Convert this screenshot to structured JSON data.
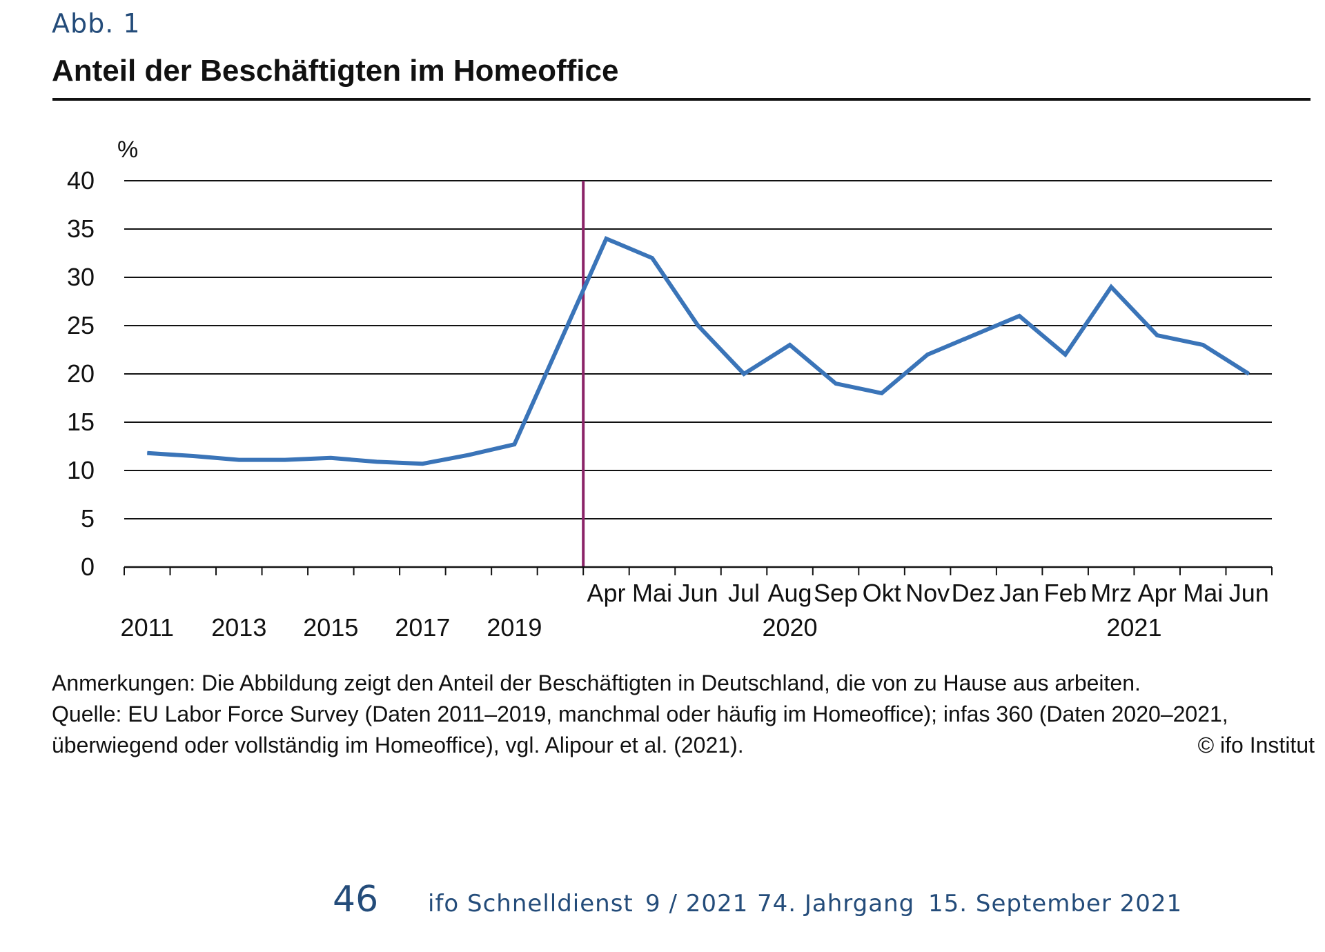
{
  "figure_label": "Abb. 1",
  "chart_data": {
    "type": "line",
    "title": "Anteil der Beschäftigten im Homeoffice",
    "ylabel": "%",
    "ylim": [
      0,
      40
    ],
    "yticks": [
      0,
      5,
      10,
      15,
      20,
      25,
      30,
      35,
      40
    ],
    "grid": true,
    "x_year_labels": [
      "2011",
      "2013",
      "2015",
      "2017",
      "2019"
    ],
    "x_month_labels": [
      "Apr",
      "Mai",
      "Jun",
      "Jul",
      "Aug",
      "Sep",
      "Okt",
      "Nov",
      "Dez",
      "Jan",
      "Feb",
      "Mrz",
      "Apr",
      "Mai",
      "Jun"
    ],
    "x_group_labels": [
      "2020",
      "2021"
    ],
    "series_color": "#3a74b8",
    "marker_line_color": "#8b2468",
    "series": [
      {
        "x_annual": [
          "2011",
          "2012",
          "2013",
          "2014",
          "2015",
          "2016",
          "2017",
          "2018",
          "2019"
        ],
        "values_annual": [
          11.8,
          11.5,
          11.1,
          11.1,
          11.3,
          10.9,
          10.7,
          11.6,
          12.7
        ],
        "x_monthly": [
          "2020-04",
          "2020-05",
          "2020-06",
          "2020-07",
          "2020-08",
          "2020-09",
          "2020-10",
          "2020-11",
          "2020-12",
          "2021-01",
          "2021-02",
          "2021-03",
          "2021-04",
          "2021-05",
          "2021-06"
        ],
        "values_monthly": [
          34,
          32,
          25,
          20,
          23,
          19,
          18,
          22,
          24,
          26,
          22,
          29,
          24,
          23,
          20
        ]
      }
    ]
  },
  "notes": {
    "line1": "Anmerkungen: Die Abbildung zeigt den Anteil der Beschäftigten in Deutschland, die von zu Hause aus arbeiten.",
    "line2": "Quelle:  EU Labor Force Survey (Daten 2011–2019, manchmal oder häufig im Homeoffice); infas 360 (Daten 2020–2021,",
    "line3": "überwiegend oder vollständig im Homeoffice), vgl. Alipour et al. (2021).",
    "copyright": "© ifo Institut"
  },
  "footer": {
    "page": "46",
    "publication": "ifo Schnelldienst",
    "issue": "9 / 2021",
    "volume": "74. Jahrgang",
    "date": "15. September 2021"
  }
}
